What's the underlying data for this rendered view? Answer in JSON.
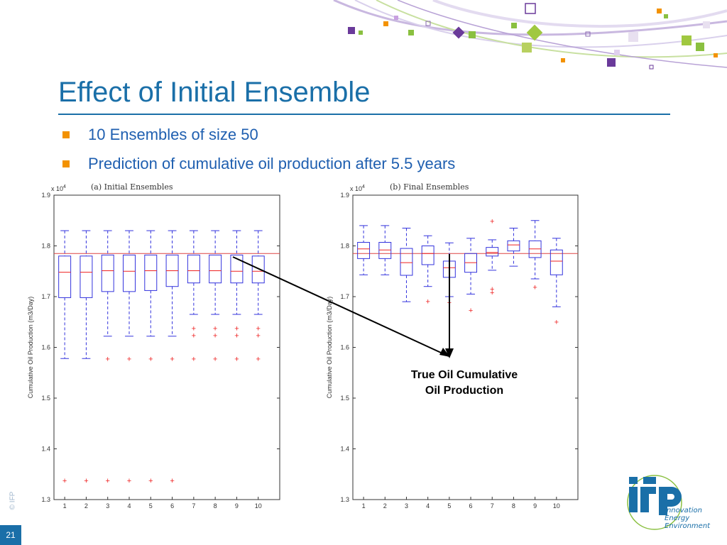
{
  "slide": {
    "title": "Effect of Initial Ensemble",
    "bullets": [
      "10 Ensembles of size 50",
      "Prediction of cumulative oil production after 5.5 years"
    ],
    "annotation_line1": "True Oil Cumulative",
    "annotation_line2": "Oil Production",
    "page_number": "21",
    "copyright": "© IFP",
    "logo_text": "ifp",
    "logo_tagline": [
      "Innovation",
      "Energy",
      "Environment"
    ]
  },
  "colors": {
    "accent": "#1a6fa8",
    "bullet": "#f39200",
    "box": "#3333dd",
    "median": "#ee2222",
    "outlier": "#ee2222",
    "true_line": "#dd4444"
  },
  "chart_data": [
    {
      "type": "boxplot",
      "title": "(a) Initial Ensembles",
      "ylabel": "Cumulative Oil Production (m3/Day)",
      "y_multiplier": "x 10^4",
      "ylim": [
        1.3,
        1.9
      ],
      "yticks": [
        "1.3",
        "1.4",
        "1.5",
        "1.6",
        "1.7",
        "1.8",
        "1.9"
      ],
      "categories": [
        "1",
        "2",
        "3",
        "4",
        "5",
        "6",
        "7",
        "8",
        "9",
        "10"
      ],
      "true_value": 1.785,
      "boxes": [
        {
          "whisker_low": 1.578,
          "q1": 1.698,
          "median": 1.748,
          "q3": 1.78,
          "whisker_high": 1.83,
          "outliers": [
            1.337
          ]
        },
        {
          "whisker_low": 1.578,
          "q1": 1.698,
          "median": 1.748,
          "q3": 1.78,
          "whisker_high": 1.83,
          "outliers": [
            1.337
          ]
        },
        {
          "whisker_low": 1.622,
          "q1": 1.71,
          "median": 1.751,
          "q3": 1.782,
          "whisker_high": 1.83,
          "outliers": [
            1.577,
            1.337
          ]
        },
        {
          "whisker_low": 1.622,
          "q1": 1.71,
          "median": 1.75,
          "q3": 1.782,
          "whisker_high": 1.83,
          "outliers": [
            1.577,
            1.337
          ]
        },
        {
          "whisker_low": 1.622,
          "q1": 1.712,
          "median": 1.751,
          "q3": 1.782,
          "whisker_high": 1.83,
          "outliers": [
            1.577,
            1.337
          ]
        },
        {
          "whisker_low": 1.622,
          "q1": 1.72,
          "median": 1.751,
          "q3": 1.782,
          "whisker_high": 1.83,
          "outliers": [
            1.577,
            1.337
          ]
        },
        {
          "whisker_low": 1.665,
          "q1": 1.727,
          "median": 1.751,
          "q3": 1.782,
          "whisker_high": 1.83,
          "outliers": [
            1.637,
            1.623,
            1.577
          ]
        },
        {
          "whisker_low": 1.665,
          "q1": 1.727,
          "median": 1.751,
          "q3": 1.782,
          "whisker_high": 1.83,
          "outliers": [
            1.637,
            1.623,
            1.577
          ]
        },
        {
          "whisker_low": 1.665,
          "q1": 1.727,
          "median": 1.75,
          "q3": 1.782,
          "whisker_high": 1.83,
          "outliers": [
            1.637,
            1.623,
            1.577
          ]
        },
        {
          "whisker_low": 1.665,
          "q1": 1.727,
          "median": 1.75,
          "q3": 1.78,
          "whisker_high": 1.83,
          "outliers": [
            1.637,
            1.623,
            1.577
          ]
        }
      ]
    },
    {
      "type": "boxplot",
      "title": "(b) Final Ensembles",
      "ylabel": "Cumulative Oil Production (m3/Day)",
      "y_multiplier": "x 10^4",
      "ylim": [
        1.3,
        1.9
      ],
      "yticks": [
        "1.3",
        "1.4",
        "1.5",
        "1.6",
        "1.7",
        "1.8",
        "1.9"
      ],
      "categories": [
        "1",
        "2",
        "3",
        "4",
        "5",
        "6",
        "7",
        "8",
        "9",
        "10"
      ],
      "true_value": 1.785,
      "boxes": [
        {
          "whisker_low": 1.743,
          "q1": 1.775,
          "median": 1.794,
          "q3": 1.807,
          "whisker_high": 1.84,
          "outliers": []
        },
        {
          "whisker_low": 1.743,
          "q1": 1.775,
          "median": 1.792,
          "q3": 1.807,
          "whisker_high": 1.84,
          "outliers": []
        },
        {
          "whisker_low": 1.69,
          "q1": 1.742,
          "median": 1.767,
          "q3": 1.795,
          "whisker_high": 1.835,
          "outliers": []
        },
        {
          "whisker_low": 1.72,
          "q1": 1.763,
          "median": 1.785,
          "q3": 1.8,
          "whisker_high": 1.82,
          "outliers": [
            1.69
          ]
        },
        {
          "whisker_low": 1.7,
          "q1": 1.738,
          "median": 1.757,
          "q3": 1.77,
          "whisker_high": 1.806,
          "outliers": [
            1.688
          ]
        },
        {
          "whisker_low": 1.705,
          "q1": 1.748,
          "median": 1.767,
          "q3": 1.785,
          "whisker_high": 1.815,
          "outliers": [
            1.673
          ]
        },
        {
          "whisker_low": 1.752,
          "q1": 1.78,
          "median": 1.787,
          "q3": 1.797,
          "whisker_high": 1.812,
          "outliers": [
            1.848,
            1.715,
            1.708
          ]
        },
        {
          "whisker_low": 1.76,
          "q1": 1.79,
          "median": 1.802,
          "q3": 1.81,
          "whisker_high": 1.835,
          "outliers": []
        },
        {
          "whisker_low": 1.735,
          "q1": 1.777,
          "median": 1.794,
          "q3": 1.81,
          "whisker_high": 1.85,
          "outliers": [
            1.718
          ]
        },
        {
          "whisker_low": 1.68,
          "q1": 1.743,
          "median": 1.77,
          "q3": 1.792,
          "whisker_high": 1.815,
          "outliers": [
            1.65
          ]
        }
      ]
    }
  ]
}
